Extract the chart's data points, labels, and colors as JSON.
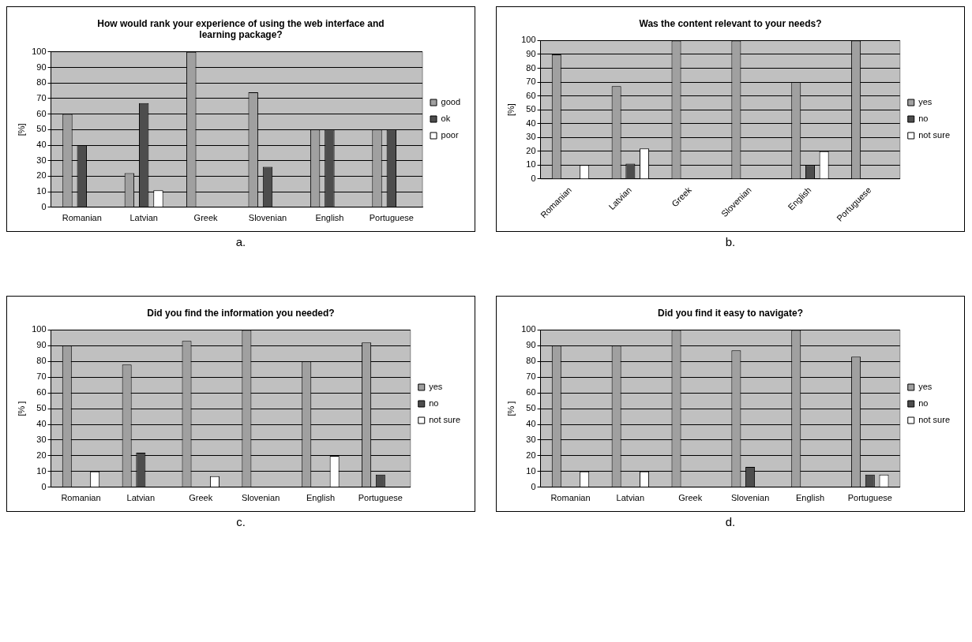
{
  "chart_data": [
    {
      "type": "bar",
      "title": "How would rank your experience of using the web interface and learning package?",
      "ylabel": "[%]",
      "categories": [
        "Romanian",
        "Latvian",
        "Greek",
        "Slovenian",
        "English",
        "Portuguese"
      ],
      "series": [
        {
          "name": "good",
          "color": "#a0a0a0",
          "values": [
            60,
            22,
            100,
            74,
            50,
            50
          ]
        },
        {
          "name": "ok",
          "color": "#4d4d4d",
          "values": [
            40,
            67,
            null,
            26,
            50,
            50
          ]
        },
        {
          "name": "poor",
          "color": "#ffffff",
          "values": [
            null,
            11,
            null,
            null,
            null,
            null
          ]
        }
      ],
      "ylim": [
        0,
        100
      ],
      "yticks": [
        0,
        10,
        20,
        30,
        40,
        50,
        60,
        70,
        80,
        90,
        100
      ],
      "grid": "y",
      "legend": "right",
      "annotations": [
        "a."
      ]
    },
    {
      "type": "bar",
      "title": "Was the content relevant to your needs?",
      "ylabel": "[%]",
      "categories": [
        "Romanian",
        "Latvian",
        "Greek",
        "Slovenian",
        "English",
        "Portuguese"
      ],
      "series": [
        {
          "name": "yes",
          "color": "#a0a0a0",
          "values": [
            90,
            67,
            100,
            100,
            70,
            100
          ]
        },
        {
          "name": "no",
          "color": "#4d4d4d",
          "values": [
            null,
            11,
            null,
            null,
            10,
            null
          ]
        },
        {
          "name": "not sure",
          "color": "#ffffff",
          "values": [
            10,
            22,
            null,
            null,
            20,
            null
          ]
        }
      ],
      "ylim": [
        0,
        100
      ],
      "yticks": [
        0,
        10,
        20,
        30,
        40,
        50,
        60,
        70,
        80,
        90,
        100
      ],
      "grid": "y",
      "legend": "right",
      "annotations": [
        "b."
      ]
    },
    {
      "type": "bar",
      "title": "Did you find the information you needed?",
      "ylabel": "[% ]",
      "categories": [
        "Romanian",
        "Latvian",
        "Greek",
        "Slovenian",
        "English",
        "Portuguese"
      ],
      "series": [
        {
          "name": "yes",
          "color": "#a0a0a0",
          "values": [
            90,
            78,
            93,
            100,
            80,
            92
          ]
        },
        {
          "name": "no",
          "color": "#4d4d4d",
          "values": [
            null,
            22,
            null,
            null,
            null,
            8
          ]
        },
        {
          "name": "not sure",
          "color": "#ffffff",
          "values": [
            10,
            null,
            7,
            null,
            20,
            null
          ]
        }
      ],
      "ylim": [
        0,
        100
      ],
      "yticks": [
        0,
        10,
        20,
        30,
        40,
        50,
        60,
        70,
        80,
        90,
        100
      ],
      "grid": "y",
      "legend": "right",
      "annotations": [
        "c."
      ]
    },
    {
      "type": "bar",
      "title": "Did you find it easy to navigate?",
      "ylabel": "[% ]",
      "categories": [
        "Romanian",
        "Latvian",
        "Greek",
        "Slovenian",
        "English",
        "Portuguese"
      ],
      "series": [
        {
          "name": "yes",
          "color": "#a0a0a0",
          "values": [
            90,
            90,
            100,
            87,
            100,
            83
          ]
        },
        {
          "name": "no",
          "color": "#4d4d4d",
          "values": [
            null,
            null,
            null,
            13,
            null,
            8
          ]
        },
        {
          "name": "not sure",
          "color": "#ffffff",
          "values": [
            10,
            10,
            null,
            null,
            null,
            8
          ]
        }
      ],
      "ylim": [
        0,
        100
      ],
      "yticks": [
        0,
        10,
        20,
        30,
        40,
        50,
        60,
        70,
        80,
        90,
        100
      ],
      "grid": "y",
      "legend": "right",
      "annotations": [
        "d."
      ]
    }
  ]
}
